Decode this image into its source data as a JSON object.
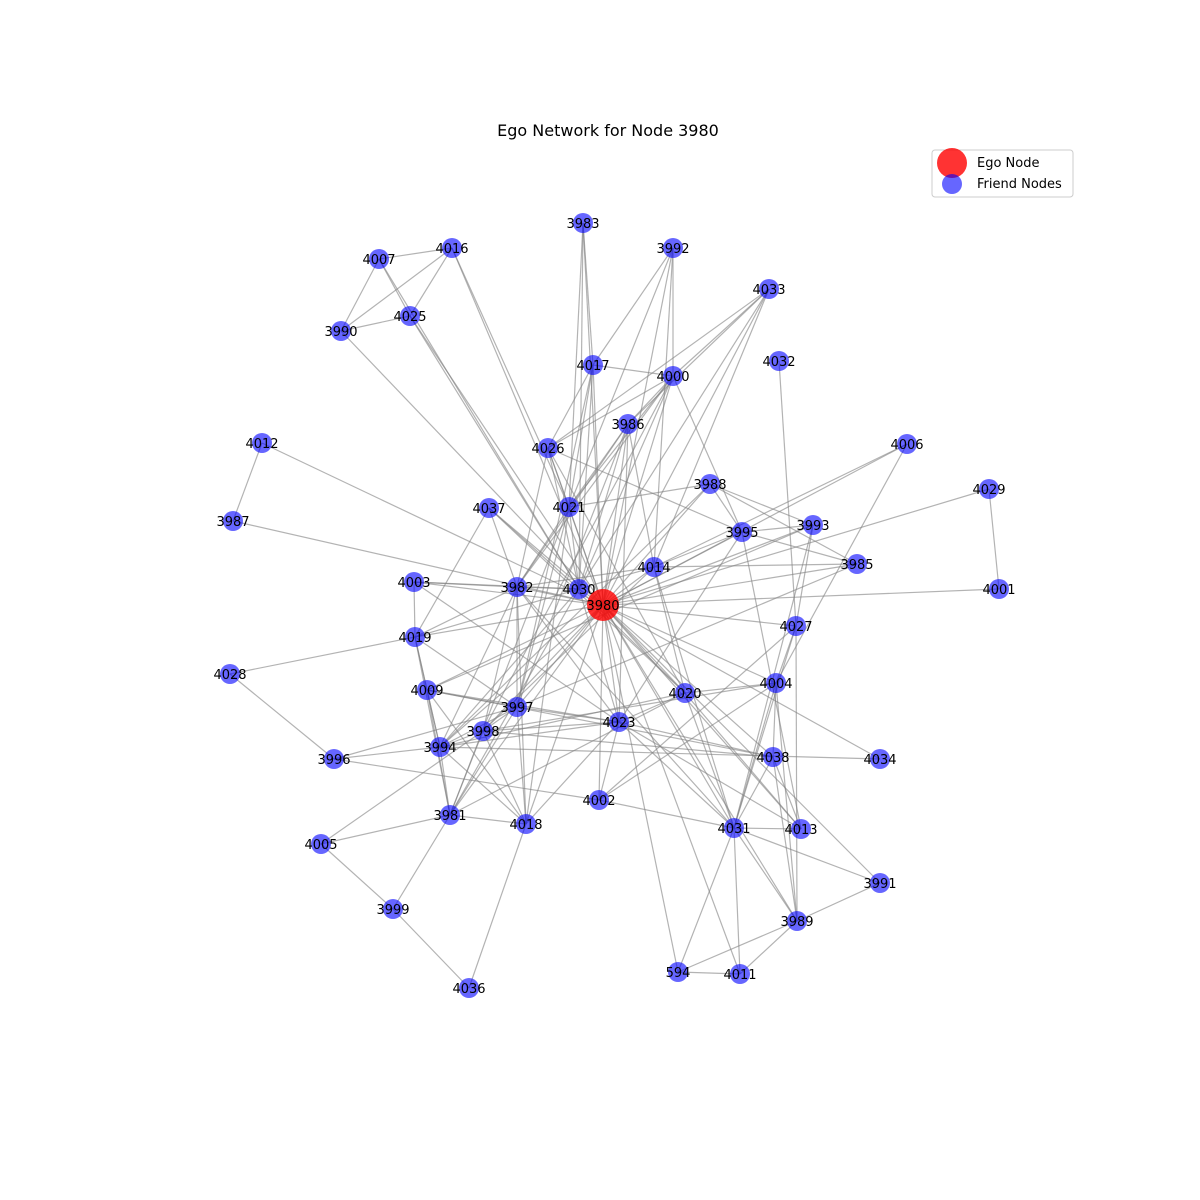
{
  "title": "Ego Network for Node 3980",
  "legend": {
    "ego_label": "Ego Node",
    "friend_label": "Friend Nodes",
    "ego_color": "#ff0000",
    "friend_color": "#0000ff"
  },
  "ego_node": "3980",
  "nodes": [
    {
      "id": "3980",
      "type": "ego"
    },
    {
      "id": "3983",
      "type": "friend"
    },
    {
      "id": "3992",
      "type": "friend"
    },
    {
      "id": "4007",
      "type": "friend"
    },
    {
      "id": "4016",
      "type": "friend"
    },
    {
      "id": "4025",
      "type": "friend"
    },
    {
      "id": "3990",
      "type": "friend"
    },
    {
      "id": "4033",
      "type": "friend"
    },
    {
      "id": "4032",
      "type": "friend"
    },
    {
      "id": "4017",
      "type": "friend"
    },
    {
      "id": "4000",
      "type": "friend"
    },
    {
      "id": "3986",
      "type": "friend"
    },
    {
      "id": "4026",
      "type": "friend"
    },
    {
      "id": "4012",
      "type": "friend"
    },
    {
      "id": "4006",
      "type": "friend"
    },
    {
      "id": "3988",
      "type": "friend"
    },
    {
      "id": "4029",
      "type": "friend"
    },
    {
      "id": "4037",
      "type": "friend"
    },
    {
      "id": "4021",
      "type": "friend"
    },
    {
      "id": "3987",
      "type": "friend"
    },
    {
      "id": "3995",
      "type": "friend"
    },
    {
      "id": "3993",
      "type": "friend"
    },
    {
      "id": "3985",
      "type": "friend"
    },
    {
      "id": "4014",
      "type": "friend"
    },
    {
      "id": "4003",
      "type": "friend"
    },
    {
      "id": "3982",
      "type": "friend"
    },
    {
      "id": "4030",
      "type": "friend"
    },
    {
      "id": "4001",
      "type": "friend"
    },
    {
      "id": "4027",
      "type": "friend"
    },
    {
      "id": "4019",
      "type": "friend"
    },
    {
      "id": "4028",
      "type": "friend"
    },
    {
      "id": "4004",
      "type": "friend"
    },
    {
      "id": "4009",
      "type": "friend"
    },
    {
      "id": "4020",
      "type": "friend"
    },
    {
      "id": "3997",
      "type": "friend"
    },
    {
      "id": "4023",
      "type": "friend"
    },
    {
      "id": "3998",
      "type": "friend"
    },
    {
      "id": "3994",
      "type": "friend"
    },
    {
      "id": "3996",
      "type": "friend"
    },
    {
      "id": "4038",
      "type": "friend"
    },
    {
      "id": "4034",
      "type": "friend"
    },
    {
      "id": "4002",
      "type": "friend"
    },
    {
      "id": "3981",
      "type": "friend"
    },
    {
      "id": "4018",
      "type": "friend"
    },
    {
      "id": "4031",
      "type": "friend"
    },
    {
      "id": "4013",
      "type": "friend"
    },
    {
      "id": "4005",
      "type": "friend"
    },
    {
      "id": "3991",
      "type": "friend"
    },
    {
      "id": "3999",
      "type": "friend"
    },
    {
      "id": "3989",
      "type": "friend"
    },
    {
      "id": "594",
      "type": "friend"
    },
    {
      "id": "4011",
      "type": "friend"
    },
    {
      "id": "4036",
      "type": "friend"
    }
  ],
  "edges": [
    [
      "3980",
      "3983"
    ],
    [
      "3980",
      "3992"
    ],
    [
      "3980",
      "4016"
    ],
    [
      "3980",
      "4025"
    ],
    [
      "3980",
      "3990"
    ],
    [
      "3980",
      "4033"
    ],
    [
      "3980",
      "4017"
    ],
    [
      "3980",
      "4000"
    ],
    [
      "3980",
      "3986"
    ],
    [
      "3980",
      "4026"
    ],
    [
      "3980",
      "4006"
    ],
    [
      "3980",
      "3988"
    ],
    [
      "3980",
      "4029"
    ],
    [
      "3980",
      "4037"
    ],
    [
      "3980",
      "4021"
    ],
    [
      "3980",
      "3987"
    ],
    [
      "3980",
      "3995"
    ],
    [
      "3980",
      "3993"
    ],
    [
      "3980",
      "3985"
    ],
    [
      "3980",
      "4014"
    ],
    [
      "3980",
      "4003"
    ],
    [
      "3980",
      "3982"
    ],
    [
      "3980",
      "4030"
    ],
    [
      "3980",
      "4001"
    ],
    [
      "3980",
      "4027"
    ],
    [
      "3980",
      "4019"
    ],
    [
      "3980",
      "4004"
    ],
    [
      "3980",
      "4009"
    ],
    [
      "3980",
      "4020"
    ],
    [
      "3980",
      "3997"
    ],
    [
      "3980",
      "4023"
    ],
    [
      "3980",
      "3998"
    ],
    [
      "3980",
      "3994"
    ],
    [
      "3980",
      "4038"
    ],
    [
      "3980",
      "4034"
    ],
    [
      "3980",
      "4002"
    ],
    [
      "3980",
      "3981"
    ],
    [
      "3980",
      "4018"
    ],
    [
      "3980",
      "4031"
    ],
    [
      "3980",
      "4013"
    ],
    [
      "3980",
      "3991"
    ],
    [
      "3980",
      "3989"
    ],
    [
      "3980",
      "594"
    ],
    [
      "3980",
      "4011"
    ],
    [
      "3980",
      "4012"
    ],
    [
      "4007",
      "4016"
    ],
    [
      "4007",
      "4025"
    ],
    [
      "4007",
      "3990"
    ],
    [
      "4016",
      "4025"
    ],
    [
      "4016",
      "3990"
    ],
    [
      "4025",
      "3990"
    ],
    [
      "4007",
      "4030"
    ],
    [
      "4016",
      "4021"
    ],
    [
      "4025",
      "4030"
    ],
    [
      "4012",
      "3987"
    ],
    [
      "4029",
      "4001"
    ],
    [
      "3983",
      "4017"
    ],
    [
      "3983",
      "4021"
    ],
    [
      "3983",
      "4030"
    ],
    [
      "3992",
      "4000"
    ],
    [
      "3992",
      "4017"
    ],
    [
      "3992",
      "4021"
    ],
    [
      "3992",
      "4014"
    ],
    [
      "4033",
      "4000"
    ],
    [
      "4033",
      "3986"
    ],
    [
      "4033",
      "4014"
    ],
    [
      "4033",
      "4026"
    ],
    [
      "4033",
      "4030"
    ],
    [
      "4032",
      "4027"
    ],
    [
      "4017",
      "4000"
    ],
    [
      "4017",
      "4026"
    ],
    [
      "4017",
      "4021"
    ],
    [
      "4017",
      "4030"
    ],
    [
      "4017",
      "3997"
    ],
    [
      "4000",
      "3986"
    ],
    [
      "4000",
      "4026"
    ],
    [
      "4000",
      "4021"
    ],
    [
      "4000",
      "4030"
    ],
    [
      "4000",
      "3995"
    ],
    [
      "4000",
      "3982"
    ],
    [
      "4000",
      "3998"
    ],
    [
      "3986",
      "4021"
    ],
    [
      "3986",
      "4030"
    ],
    [
      "3986",
      "4023"
    ],
    [
      "3986",
      "4014"
    ],
    [
      "3986",
      "3982"
    ],
    [
      "3986",
      "3997"
    ],
    [
      "4026",
      "4021"
    ],
    [
      "4026",
      "4030"
    ],
    [
      "4026",
      "3995"
    ],
    [
      "4026",
      "3982"
    ],
    [
      "4026",
      "4020"
    ],
    [
      "4006",
      "4004"
    ],
    [
      "4006",
      "4014"
    ],
    [
      "3988",
      "3995"
    ],
    [
      "3988",
      "3993"
    ],
    [
      "3988",
      "3985"
    ],
    [
      "3988",
      "4021"
    ],
    [
      "3988",
      "3994"
    ],
    [
      "4037",
      "4030"
    ],
    [
      "4037",
      "3982"
    ],
    [
      "4037",
      "4019"
    ],
    [
      "4037",
      "4020"
    ],
    [
      "4021",
      "4030"
    ],
    [
      "4021",
      "3982"
    ],
    [
      "4021",
      "3997"
    ],
    [
      "4021",
      "4018"
    ],
    [
      "4021",
      "3981"
    ],
    [
      "3995",
      "3993"
    ],
    [
      "3995",
      "3985"
    ],
    [
      "3995",
      "4014"
    ],
    [
      "3995",
      "4023"
    ],
    [
      "3995",
      "4013"
    ],
    [
      "3993",
      "4027"
    ],
    [
      "3993",
      "4031"
    ],
    [
      "3993",
      "4009"
    ],
    [
      "3985",
      "4014"
    ],
    [
      "3985",
      "3997"
    ],
    [
      "4014",
      "4030"
    ],
    [
      "4014",
      "3982"
    ],
    [
      "4014",
      "4020"
    ],
    [
      "4014",
      "3998"
    ],
    [
      "4014",
      "4031"
    ],
    [
      "4003",
      "3982"
    ],
    [
      "4003",
      "4030"
    ],
    [
      "4003",
      "4019"
    ],
    [
      "4003",
      "4023"
    ],
    [
      "3982",
      "4030"
    ],
    [
      "3982",
      "4019"
    ],
    [
      "3982",
      "4023"
    ],
    [
      "3982",
      "3997"
    ],
    [
      "3982",
      "3998"
    ],
    [
      "3982",
      "3994"
    ],
    [
      "3982",
      "4018"
    ],
    [
      "3982",
      "4031"
    ],
    [
      "4030",
      "4019"
    ],
    [
      "4030",
      "4020"
    ],
    [
      "4030",
      "4023"
    ],
    [
      "4030",
      "3994"
    ],
    [
      "4030",
      "3981"
    ],
    [
      "4027",
      "4004"
    ],
    [
      "4027",
      "4031"
    ],
    [
      "4027",
      "3989"
    ],
    [
      "4027",
      "4002"
    ],
    [
      "4019",
      "4028"
    ],
    [
      "4019",
      "4009"
    ],
    [
      "4019",
      "3994"
    ],
    [
      "4019",
      "3981"
    ],
    [
      "4019",
      "3997"
    ],
    [
      "4028",
      "3996"
    ],
    [
      "4004",
      "4020"
    ],
    [
      "4004",
      "4038"
    ],
    [
      "4004",
      "4031"
    ],
    [
      "4004",
      "3989"
    ],
    [
      "4004",
      "3998"
    ],
    [
      "4004",
      "4002"
    ],
    [
      "4009",
      "3997"
    ],
    [
      "4009",
      "4023"
    ],
    [
      "4009",
      "3994"
    ],
    [
      "4009",
      "3981"
    ],
    [
      "4009",
      "4018"
    ],
    [
      "4009",
      "4038"
    ],
    [
      "4020",
      "4023"
    ],
    [
      "4020",
      "4031"
    ],
    [
      "4020",
      "4013"
    ],
    [
      "4020",
      "3994"
    ],
    [
      "4020",
      "3981"
    ],
    [
      "3997",
      "4023"
    ],
    [
      "3997",
      "3998"
    ],
    [
      "3997",
      "3994"
    ],
    [
      "3997",
      "3981"
    ],
    [
      "3997",
      "4018"
    ],
    [
      "3997",
      "3996"
    ],
    [
      "4023",
      "3998"
    ],
    [
      "4023",
      "3994"
    ],
    [
      "4023",
      "4038"
    ],
    [
      "4023",
      "4002"
    ],
    [
      "4023",
      "4018"
    ],
    [
      "4023",
      "4031"
    ],
    [
      "4023",
      "4013"
    ],
    [
      "3998",
      "3994"
    ],
    [
      "3998",
      "3981"
    ],
    [
      "3998",
      "4018"
    ],
    [
      "3998",
      "4005"
    ],
    [
      "3998",
      "4038"
    ],
    [
      "3994",
      "3981"
    ],
    [
      "3994",
      "4018"
    ],
    [
      "3994",
      "3996"
    ],
    [
      "3994",
      "4034"
    ],
    [
      "3996",
      "4002"
    ],
    [
      "4038",
      "4031"
    ],
    [
      "4038",
      "4013"
    ],
    [
      "4038",
      "3989"
    ],
    [
      "4002",
      "4031"
    ],
    [
      "3981",
      "4018"
    ],
    [
      "3981",
      "3999"
    ],
    [
      "3981",
      "4005"
    ],
    [
      "4018",
      "4036"
    ],
    [
      "4031",
      "4013"
    ],
    [
      "4031",
      "3991"
    ],
    [
      "4031",
      "3989"
    ],
    [
      "4031",
      "594"
    ],
    [
      "4031",
      "4011"
    ],
    [
      "4005",
      "3999"
    ],
    [
      "3999",
      "4036"
    ],
    [
      "3989",
      "3991"
    ],
    [
      "3989",
      "594"
    ],
    [
      "3989",
      "4011"
    ],
    [
      "594",
      "4011"
    ]
  ]
}
